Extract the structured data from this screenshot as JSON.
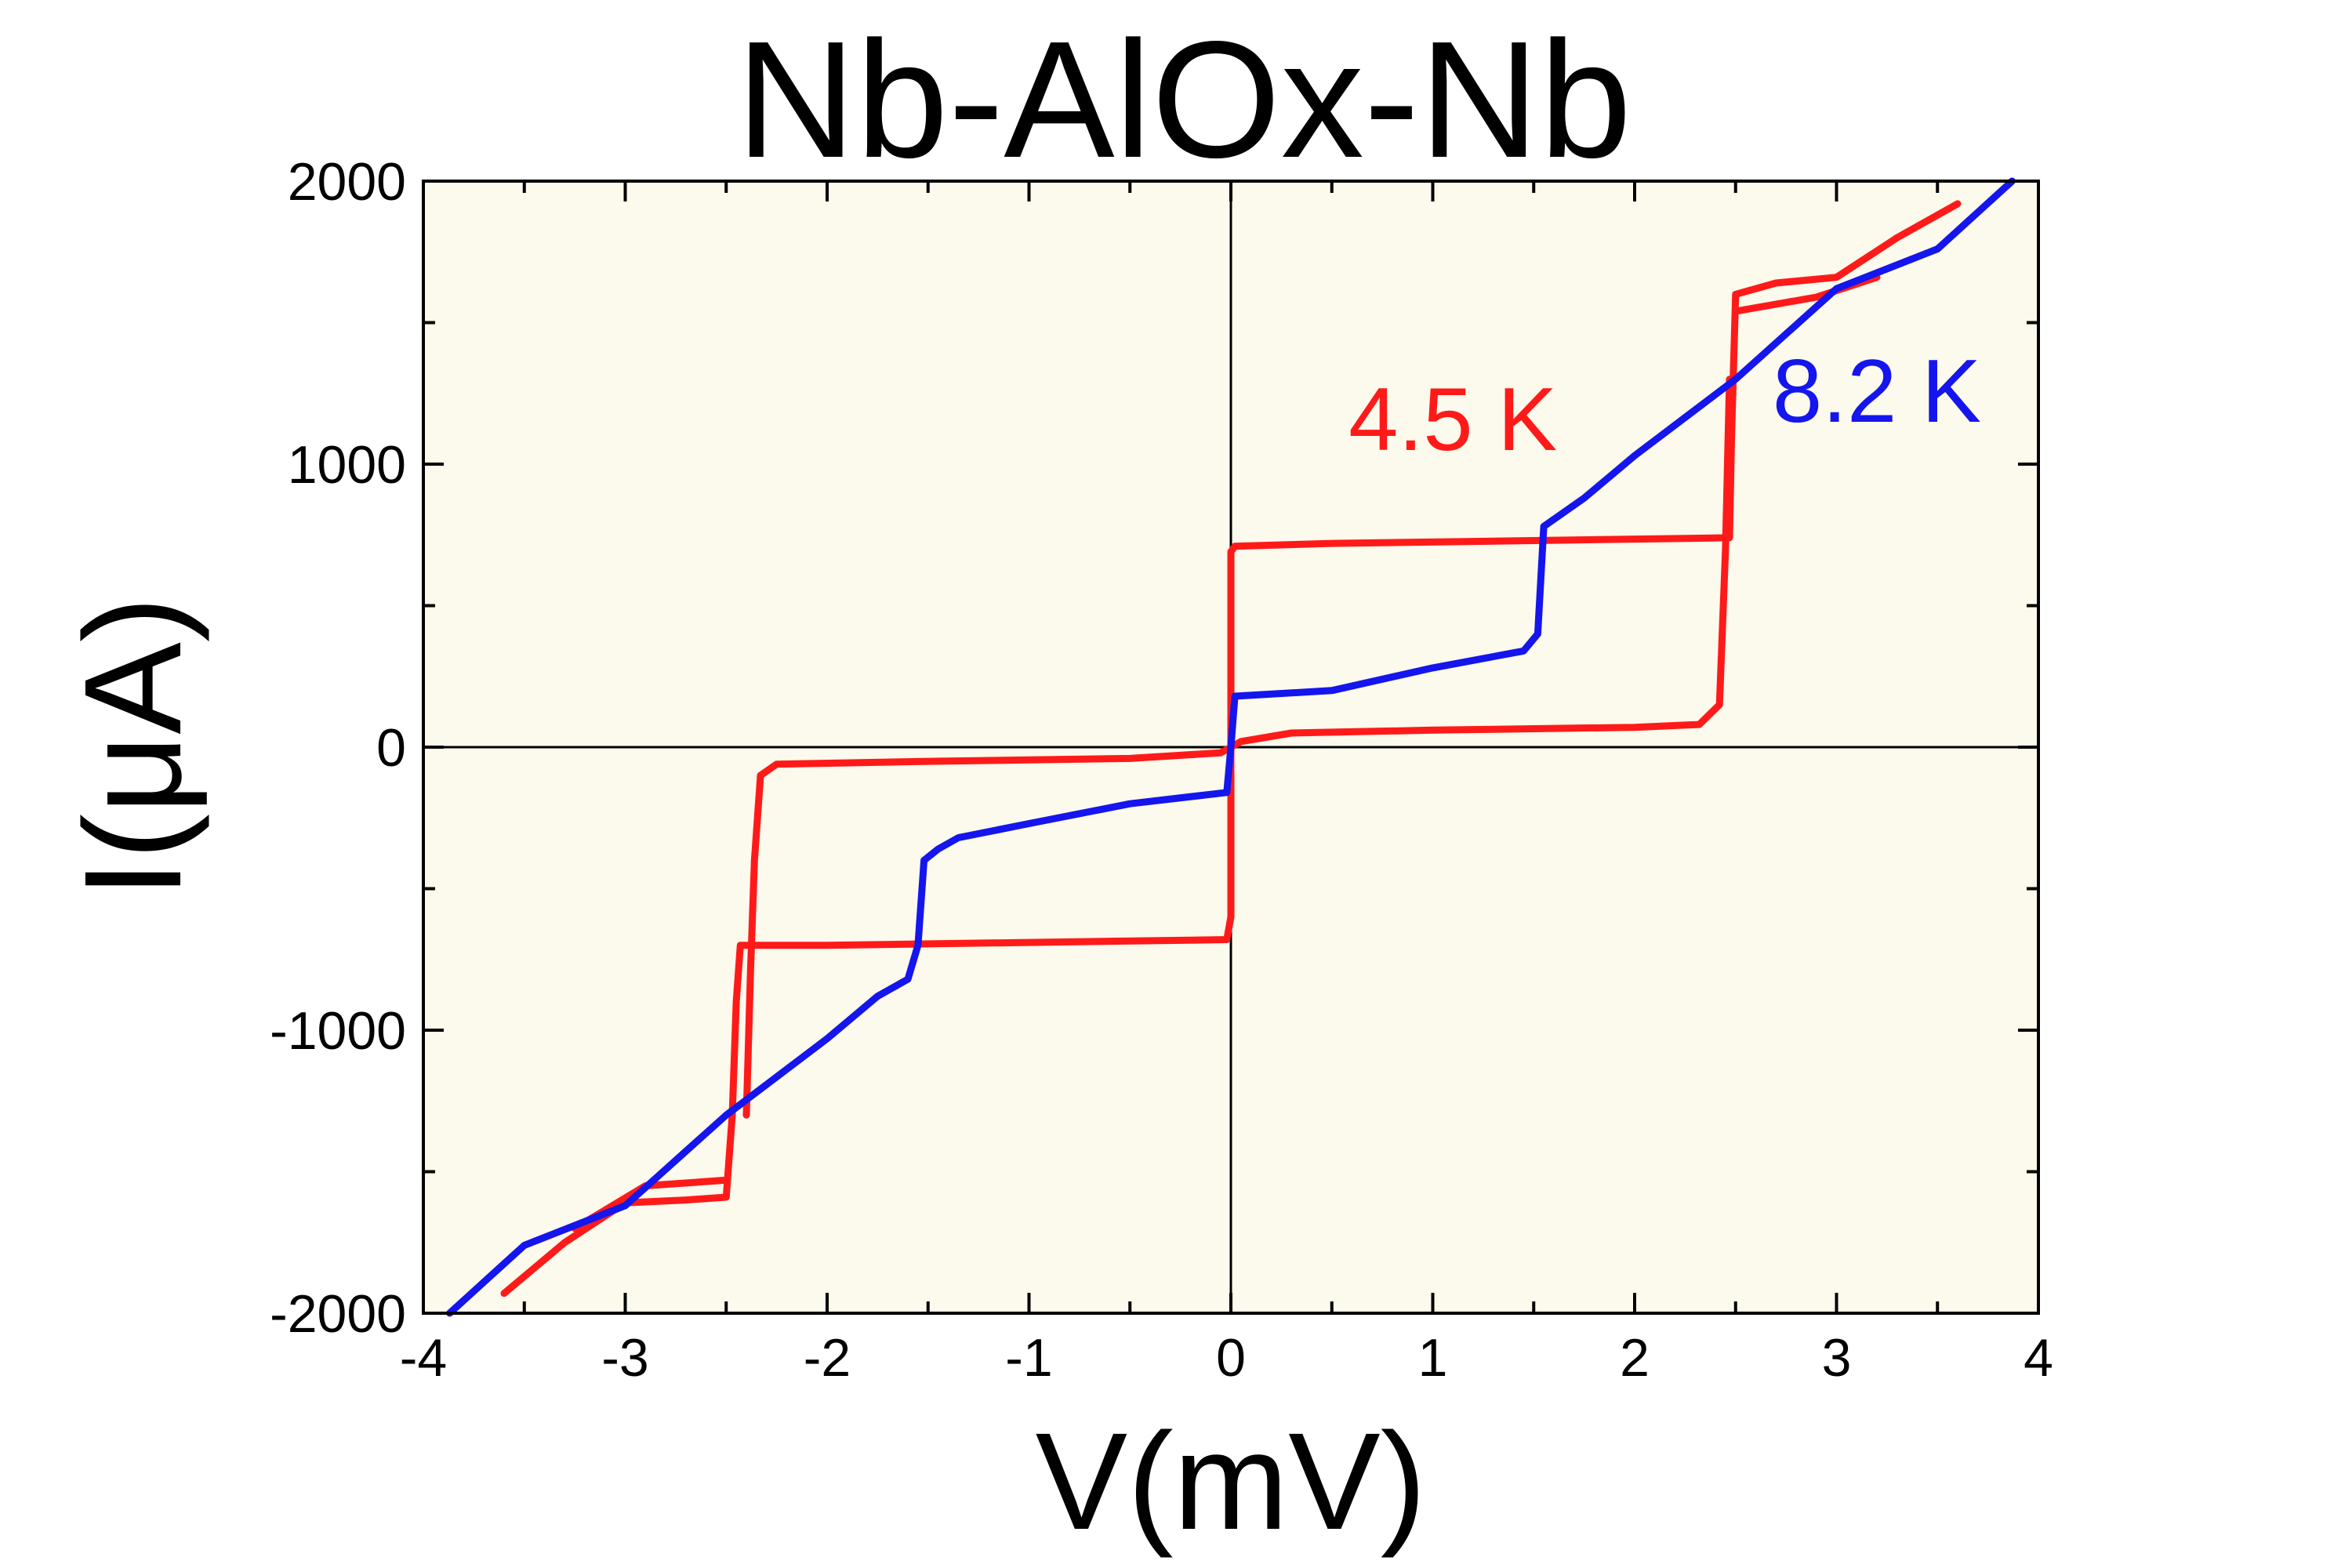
{
  "chart_data": {
    "type": "line",
    "title": "Nb-AlOx-Nb",
    "xlabel": "V(mV)",
    "ylabel": "I(μA)",
    "xlim": [
      -4,
      4
    ],
    "ylim": [
      -2000,
      2000
    ],
    "x_ticks": [
      -4,
      -3,
      -2,
      -1,
      0,
      1,
      2,
      3,
      4
    ],
    "y_ticks": [
      -2000,
      -1000,
      0,
      1000,
      2000
    ],
    "x_tick_labels": [
      "-4",
      "-3",
      "-2",
      "-1",
      "0",
      "1",
      "2",
      "3",
      "4"
    ],
    "y_tick_labels": [
      "-2000",
      "-1000",
      "0",
      "1000",
      "2000"
    ],
    "plot_background": "#fbfaec",
    "grid": false,
    "zero_lines": true,
    "series": [
      {
        "name": "4.5 K",
        "color": "#ff1a1a",
        "label_position": [
          1.1,
          1050
        ],
        "segments": [
          [
            [
              -3.6,
              -1930
            ],
            [
              -3.3,
              -1750
            ],
            [
              -3.0,
              -1610
            ],
            [
              -2.7,
              -1600
            ],
            [
              -2.5,
              -1590
            ],
            [
              -2.47,
              -1300
            ],
            [
              -2.45,
              -900
            ],
            [
              -2.43,
              -700
            ],
            [
              -2.3,
              -700
            ],
            [
              -2.0,
              -700
            ],
            [
              -1.0,
              -690
            ],
            [
              -0.5,
              -685
            ],
            [
              -0.02,
              -680
            ],
            [
              0.0,
              -600
            ],
            [
              0.0,
              0
            ],
            [
              0.0,
              690
            ],
            [
              0.02,
              710
            ],
            [
              0.5,
              720
            ],
            [
              1.5,
              730
            ],
            [
              2.47,
              740
            ],
            [
              2.48,
              1100
            ],
            [
              2.5,
              1600
            ],
            [
              2.7,
              1640
            ],
            [
              3.0,
              1660
            ],
            [
              3.3,
              1800
            ],
            [
              3.6,
              1920
            ]
          ],
          [
            [
              -3.25,
              -1700
            ],
            [
              -2.9,
              -1550
            ],
            [
              -2.5,
              -1530
            ]
          ],
          [
            [
              2.5,
              1540
            ],
            [
              2.9,
              1590
            ],
            [
              3.2,
              1660
            ]
          ],
          [
            [
              -2.4,
              -1300
            ],
            [
              -2.38,
              -800
            ],
            [
              -2.36,
              -400
            ],
            [
              -2.33,
              -100
            ],
            [
              -2.25,
              -60
            ],
            [
              -1.5,
              -50
            ],
            [
              -0.5,
              -40
            ],
            [
              -0.05,
              -20
            ],
            [
              0.0,
              0
            ],
            [
              0.05,
              20
            ],
            [
              0.3,
              50
            ],
            [
              1.0,
              60
            ],
            [
              2.0,
              70
            ],
            [
              2.32,
              80
            ],
            [
              2.42,
              150
            ],
            [
              2.45,
              700
            ],
            [
              2.47,
              1300
            ]
          ]
        ]
      },
      {
        "name": "8.2 K",
        "color": "#1515ee",
        "label_position": [
          3.2,
          1150
        ],
        "segments": [
          [
            [
              -3.87,
              -2000
            ],
            [
              -3.5,
              -1760
            ],
            [
              -3.0,
              -1620
            ],
            [
              -2.5,
              -1300
            ],
            [
              -2.0,
              -1030
            ],
            [
              -1.75,
              -880
            ],
            [
              -1.6,
              -820
            ],
            [
              -1.55,
              -700
            ],
            [
              -1.52,
              -400
            ],
            [
              -1.45,
              -360
            ],
            [
              -1.35,
              -320
            ],
            [
              -1.0,
              -270
            ],
            [
              -0.5,
              -200
            ],
            [
              -0.02,
              -160
            ],
            [
              0.0,
              0
            ],
            [
              0.02,
              180
            ],
            [
              0.5,
              200
            ],
            [
              1.0,
              280
            ],
            [
              1.45,
              340
            ],
            [
              1.52,
              400
            ],
            [
              1.55,
              780
            ],
            [
              1.75,
              880
            ],
            [
              2.0,
              1030
            ],
            [
              2.5,
              1300
            ],
            [
              3.0,
              1620
            ],
            [
              3.5,
              1760
            ],
            [
              3.87,
              2000
            ]
          ]
        ]
      }
    ]
  }
}
